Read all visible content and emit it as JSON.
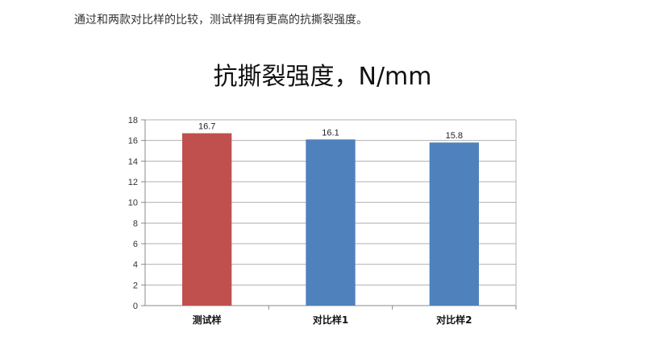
{
  "intro_text": "通过和两款对比样的比较，测试样拥有更高的抗撕裂强度。",
  "chart_data": {
    "type": "bar",
    "title": "抗撕裂强度，N/mm",
    "xlabel": "",
    "ylabel": "",
    "categories": [
      "测试样",
      "对比样1",
      "对比样2"
    ],
    "values": [
      16.7,
      16.1,
      15.8
    ],
    "data_labels": [
      "16.7",
      "16.1",
      "15.8"
    ],
    "bar_colors": [
      "#c0504d",
      "#4f81bd",
      "#4f81bd"
    ],
    "ylim": [
      0,
      18
    ],
    "yticks": [
      0,
      2,
      4,
      6,
      8,
      10,
      12,
      14,
      16,
      18
    ],
    "grid": true,
    "legend": "none"
  }
}
